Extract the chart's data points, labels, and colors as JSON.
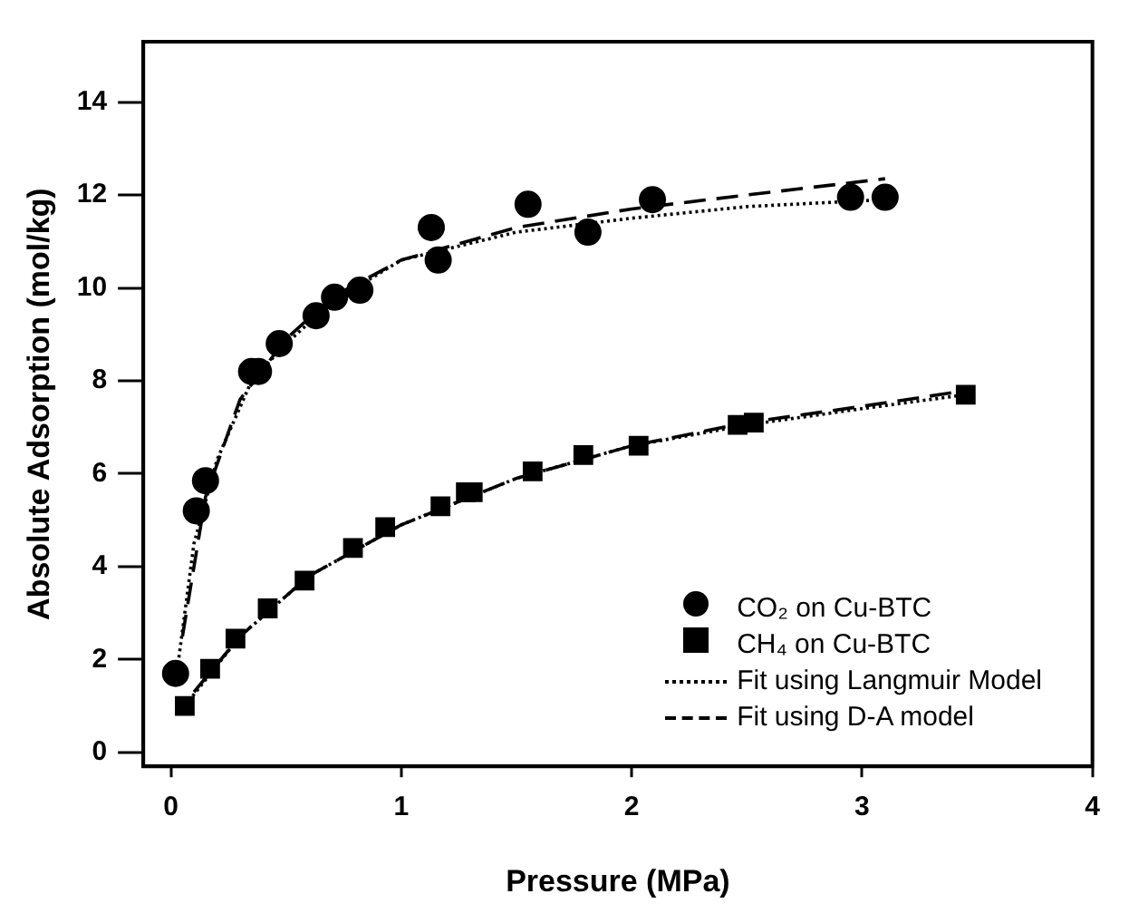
{
  "chart_data": {
    "type": "scatter",
    "xlabel": "Pressure (MPa)",
    "ylabel": "Absolute Adsorption (mol/kg)",
    "xlim": [
      -0.12,
      4
    ],
    "xticks": [
      0,
      1,
      2,
      3,
      4
    ],
    "ylim": [
      -0.3,
      15.3
    ],
    "yticks": [
      0,
      2,
      4,
      6,
      8,
      10,
      12,
      14
    ],
    "grid": false,
    "legend": "bottom right",
    "series": [
      {
        "name": "CO₂ on Cu-BTC",
        "type": "scatter",
        "marker": "circle",
        "color": "#000000",
        "x": [
          0.02,
          0.11,
          0.15,
          0.35,
          0.38,
          0.47,
          0.63,
          0.71,
          0.82,
          1.13,
          1.16,
          1.55,
          1.81,
          2.09,
          2.95,
          3.1
        ],
        "values": [
          1.7,
          5.2,
          5.85,
          8.2,
          8.2,
          8.8,
          9.4,
          9.8,
          9.95,
          11.3,
          10.6,
          11.8,
          11.2,
          11.9,
          11.95,
          11.95
        ]
      },
      {
        "name": "CH₄ on Cu-BTC",
        "type": "scatter",
        "marker": "square",
        "color": "#000000",
        "x": [
          0.06,
          0.17,
          0.28,
          0.42,
          0.58,
          0.79,
          0.93,
          1.17,
          1.28,
          1.31,
          1.57,
          1.79,
          2.03,
          2.46,
          2.53,
          3.45
        ],
        "values": [
          1.0,
          1.8,
          2.45,
          3.1,
          3.7,
          4.4,
          4.85,
          5.3,
          5.6,
          5.6,
          6.05,
          6.4,
          6.6,
          7.05,
          7.1,
          7.7
        ]
      },
      {
        "name": "Fit using Langmuir Model",
        "type": "line",
        "marker": "none",
        "line_style": "dotted",
        "color": "#000000",
        "x": [
          0.02,
          0.1,
          0.2,
          0.35,
          0.5,
          0.7,
          1,
          1.5,
          2,
          2.5,
          3.1
        ],
        "values": [
          1.5,
          4.5,
          6.3,
          8.0,
          8.8,
          9.7,
          10.6,
          11.2,
          11.5,
          11.75,
          11.9
        ]
      },
      {
        "type": "line",
        "marker": "none",
        "line_style": "dotted",
        "color": "#000000",
        "x": [
          0.06,
          0.3,
          0.6,
          1,
          1.5,
          2,
          2.5,
          3,
          3.45
        ],
        "values": [
          1.0,
          2.5,
          3.8,
          4.9,
          5.9,
          6.6,
          7.05,
          7.4,
          7.7
        ]
      },
      {
        "name": "Fit using D-A model",
        "type": "line",
        "marker": "none",
        "line_style": "dashed",
        "color": "#000000",
        "x": [
          0.05,
          0.15,
          0.3,
          0.5,
          0.7,
          1,
          1.5,
          2,
          2.5,
          3.1
        ],
        "values": [
          2.5,
          5.5,
          7.6,
          8.9,
          9.8,
          10.6,
          11.3,
          11.7,
          12.0,
          12.35
        ]
      },
      {
        "type": "line",
        "marker": "none",
        "line_style": "dashed",
        "color": "#000000",
        "x": [
          0.1,
          0.3,
          0.6,
          1,
          1.5,
          2,
          2.5,
          3,
          3.4
        ],
        "values": [
          1.3,
          2.5,
          3.8,
          4.9,
          5.9,
          6.6,
          7.1,
          7.45,
          7.75
        ]
      }
    ]
  }
}
